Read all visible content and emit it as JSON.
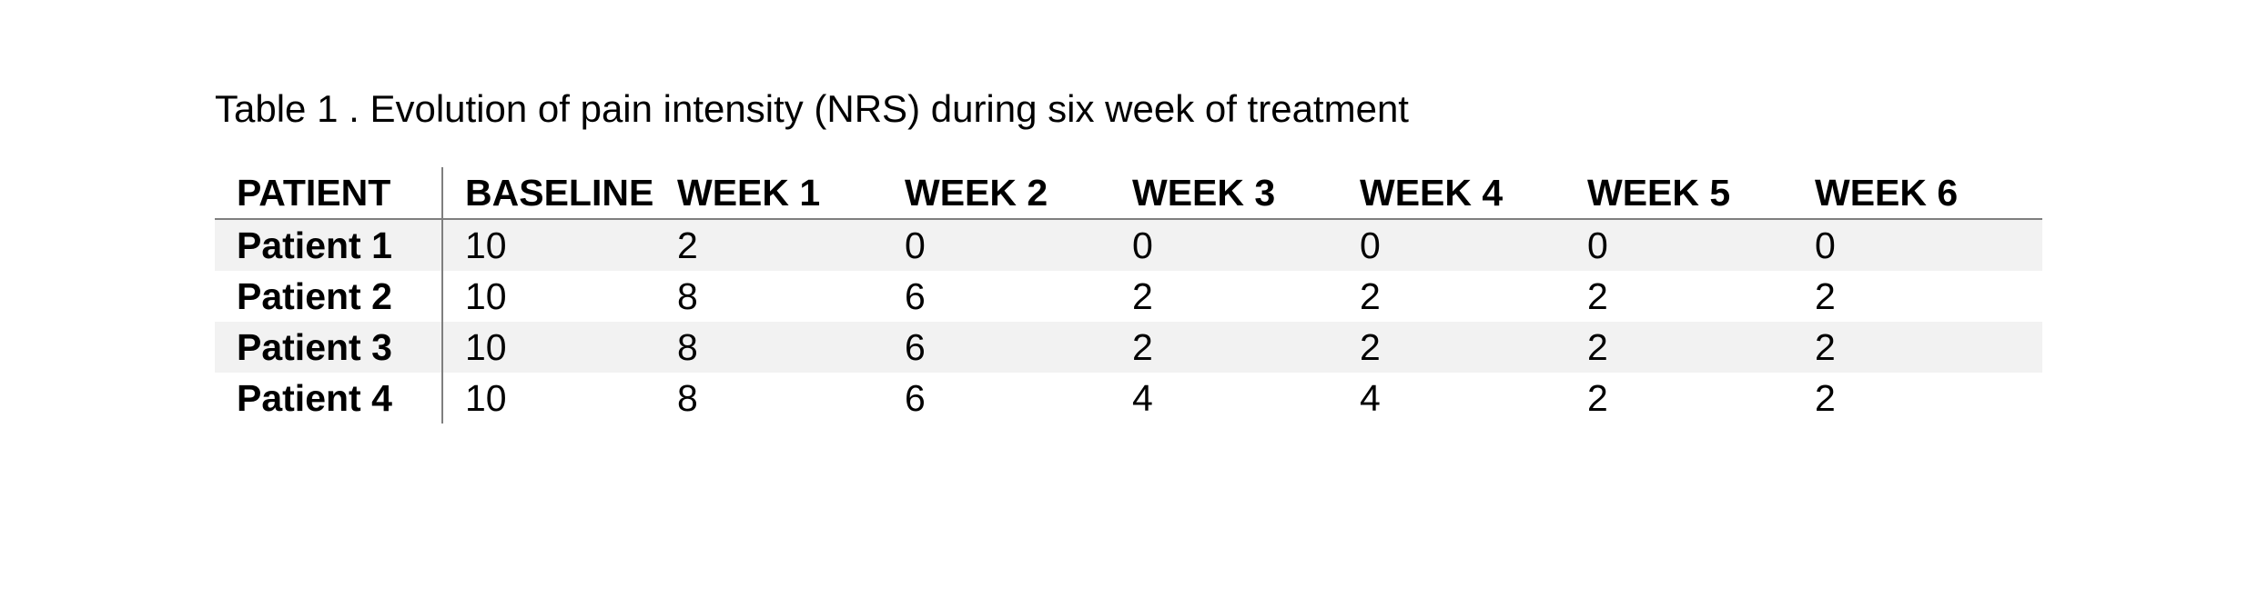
{
  "caption": "Table 1 . Evolution of pain intensity (NRS) during six week of treatment",
  "table": {
    "headers": [
      "PATIENT",
      "BASELINE",
      "WEEK 1",
      "WEEK 2",
      "WEEK 3",
      "WEEK 4",
      "WEEK 5",
      "WEEK 6"
    ],
    "rows": [
      [
        "Patient 1",
        "10",
        "2",
        "0",
        "0",
        "0",
        "0",
        "0"
      ],
      [
        "Patient 2",
        "10",
        "8",
        "6",
        "2",
        "2",
        "2",
        "2"
      ],
      [
        "Patient 3",
        "10",
        "8",
        "6",
        "2",
        "2",
        "2",
        "2"
      ],
      [
        "Patient 4",
        "10",
        "8",
        "6",
        "4",
        "4",
        "2",
        "2"
      ]
    ]
  }
}
